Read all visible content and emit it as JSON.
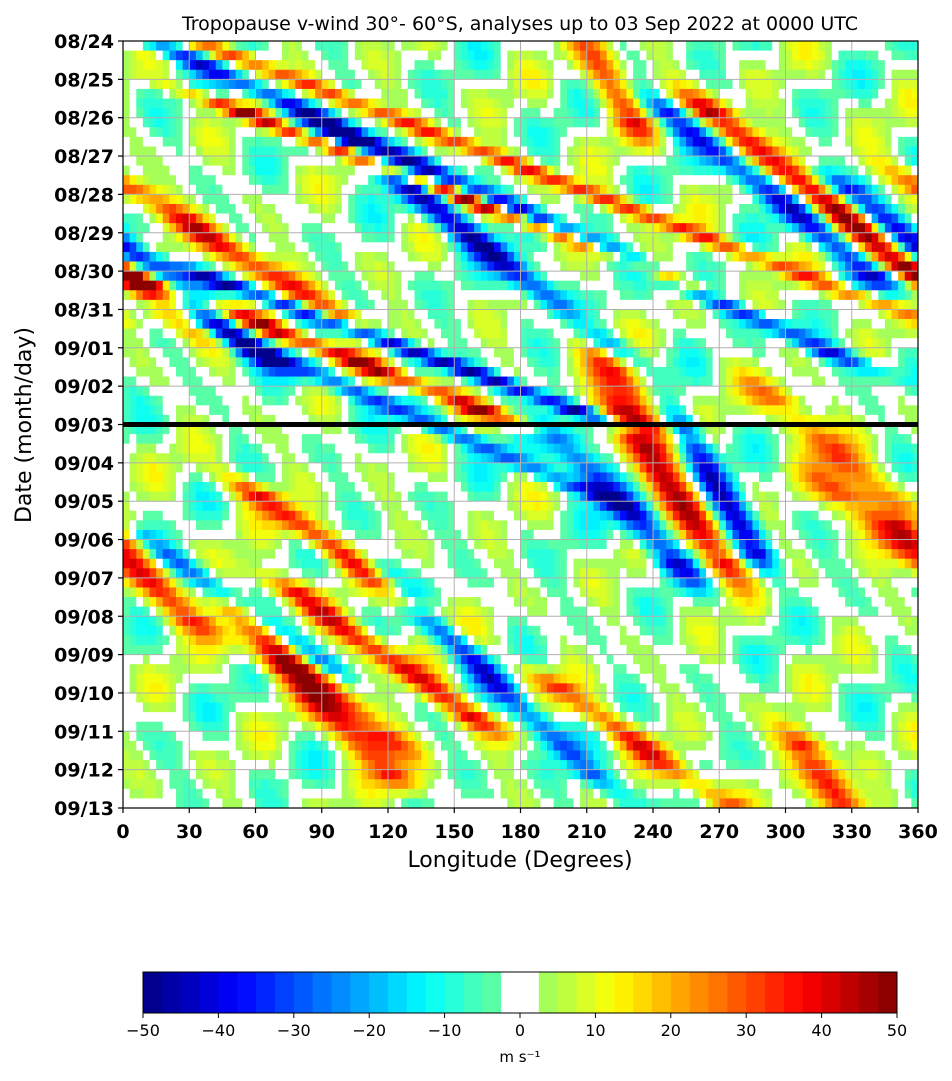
{
  "chart_data": {
    "type": "heatmap",
    "title": "Tropopause v-wind 30°- 60°S, analyses up to 03 Sep 2022 at 0000 UTC",
    "xlabel": "Longitude (Degrees)",
    "ylabel": "Date (month/day)",
    "x_ticks": [
      "0",
      "30",
      "60",
      "90",
      "120",
      "150",
      "180",
      "210",
      "240",
      "270",
      "300",
      "330",
      "360"
    ],
    "xlim": [
      0,
      360
    ],
    "y_ticks": [
      "08/24",
      "08/25",
      "08/26",
      "08/27",
      "08/28",
      "08/29",
      "08/30",
      "08/31",
      "09/01",
      "09/02",
      "09/03",
      "09/04",
      "09/05",
      "09/06",
      "09/07",
      "09/08",
      "09/09",
      "09/10",
      "09/11",
      "09/12",
      "09/13"
    ],
    "ylim": [
      "08/24",
      "09/13"
    ],
    "y_inverted": true,
    "grid": true,
    "analysis_line": "09/03",
    "colorbar": {
      "ticks": [
        "−50",
        "−40",
        "−30",
        "−20",
        "−10",
        "0",
        "10",
        "20",
        "30",
        "40",
        "50"
      ],
      "range": [
        -50,
        50
      ],
      "step": 2.5,
      "white_band": [
        -2.5,
        2.5
      ],
      "unit": "m s⁻¹",
      "colormap": "jet"
    },
    "bands": [
      {
        "sign": "neg",
        "amp": 40,
        "start_lon": 12,
        "start_day": 0.0,
        "speed": 38,
        "length": 8,
        "width": 7
      },
      {
        "sign": "pos",
        "amp": 35,
        "start_lon": 55,
        "start_day": 0.5,
        "speed": 45,
        "length": 6,
        "width": 7
      },
      {
        "sign": "pos",
        "amp": 48,
        "start_lon": 60,
        "start_day": 2.0,
        "speed": 45,
        "length": 4,
        "width": 6
      },
      {
        "sign": "neg",
        "amp": 45,
        "start_lon": 107,
        "start_day": 2.8,
        "speed": 22,
        "length": 5,
        "width": 7
      },
      {
        "sign": "pos",
        "amp": 38,
        "start_lon": 8,
        "start_day": 4.0,
        "speed": 28,
        "length": 3,
        "width": 8
      },
      {
        "sign": "pos",
        "amp": 42,
        "start_lon": 22,
        "start_day": 6.5,
        "speed": 45,
        "length": 3,
        "width": 8
      },
      {
        "sign": "neg",
        "amp": 48,
        "start_lon": 55,
        "start_day": 6.5,
        "speed": 48,
        "length": 3,
        "width": 7
      },
      {
        "sign": "neg",
        "amp": 30,
        "start_lon": 40,
        "start_day": 7.5,
        "speed": 40,
        "length": 4,
        "width": 7
      },
      {
        "sign": "pos",
        "amp": 35,
        "start_lon": 210,
        "start_day": 7.5,
        "speed": 12,
        "length": 2.5,
        "width": 8
      },
      {
        "sign": "pos",
        "amp": 40,
        "start_lon": 228,
        "start_day": 10.0,
        "speed": 12,
        "length": 3.5,
        "width": 8
      },
      {
        "sign": "neg",
        "amp": 40,
        "start_lon": 200,
        "start_day": 10.5,
        "speed": 16,
        "length": 3,
        "width": 7
      },
      {
        "sign": "neg",
        "amp": 42,
        "start_lon": 255,
        "start_day": 10.2,
        "speed": 10,
        "length": 3,
        "width": 6
      },
      {
        "sign": "neg",
        "amp": 40,
        "start_lon": 250,
        "start_day": 2.0,
        "speed": 22,
        "length": 4,
        "width": 7
      },
      {
        "sign": "pos",
        "amp": 46,
        "start_lon": 270,
        "start_day": 2.0,
        "speed": 22,
        "length": 5,
        "width": 8
      },
      {
        "sign": "neg",
        "amp": 42,
        "start_lon": 330,
        "start_day": 4.0,
        "speed": 22,
        "length": 4,
        "width": 7
      },
      {
        "sign": "pos",
        "amp": 30,
        "start_lon": 300,
        "start_day": 9.5,
        "speed": 18,
        "length": 3,
        "width": 8
      },
      {
        "sign": "pos",
        "amp": 40,
        "start_lon": 65,
        "start_day": 12.0,
        "speed": 25,
        "length": 2.5,
        "width": 7
      },
      {
        "sign": "pos",
        "amp": 40,
        "start_lon": 80,
        "start_day": 14.5,
        "speed": 25,
        "length": 3,
        "width": 7
      },
      {
        "sign": "neg",
        "amp": 35,
        "start_lon": 120,
        "start_day": 14.0,
        "speed": 18,
        "length": 5,
        "width": 6
      },
      {
        "sign": "pos",
        "amp": 35,
        "start_lon": 55,
        "start_day": 15.0,
        "speed": 20,
        "length": 3,
        "width": 7
      },
      {
        "sign": "pos",
        "amp": 35,
        "start_lon": 75,
        "start_day": 16.5,
        "speed": 18,
        "length": 2.5,
        "width": 7
      },
      {
        "sign": "pos",
        "amp": 32,
        "start_lon": 200,
        "start_day": 17.0,
        "speed": 25,
        "length": 3,
        "width": 7
      },
      {
        "sign": "neg",
        "amp": 30,
        "start_lon": 10,
        "start_day": 13.0,
        "speed": 25,
        "length": 3,
        "width": 6
      },
      {
        "sign": "pos",
        "amp": 35,
        "start_lon": 330,
        "start_day": 12.0,
        "speed": 20,
        "length": 3,
        "width": 8
      },
      {
        "sign": "pos",
        "amp": 40,
        "start_lon": 310,
        "start_day": 18.5,
        "speed": 12,
        "length": 2.5,
        "width": 7
      },
      {
        "sign": "pos",
        "amp": 30,
        "start_lon": 210,
        "start_day": 0.0,
        "speed": 10,
        "length": 2,
        "width": 7
      }
    ]
  }
}
